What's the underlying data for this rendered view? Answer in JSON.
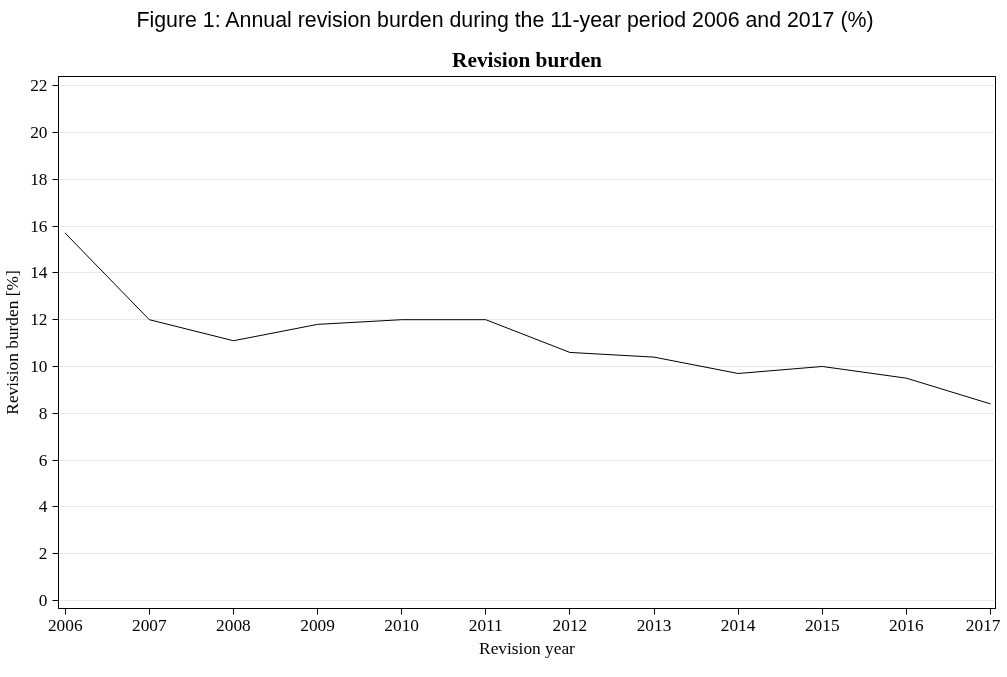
{
  "chart_data": {
    "type": "line",
    "title": "Revision burden",
    "xlabel": "Revision year",
    "ylabel": "Revision burden [%]",
    "annotations": [
      "Figure 1: Annual revision burden during the 11-year period 2006 and 2017 (%)"
    ],
    "x": [
      2006,
      2007,
      2008,
      2009,
      2010,
      2011,
      2012,
      2013,
      2014,
      2015,
      2016,
      2017
    ],
    "series": [
      {
        "color": "#000000",
        "values": [
          15.7,
          12.0,
          11.1,
          11.8,
          12.0,
          12.0,
          10.6,
          10.4,
          9.7,
          10.0,
          9.5,
          8.4
        ]
      }
    ],
    "xlim": [
      2005.92,
      2017.06
    ],
    "xticks": [
      2006,
      2007,
      2008,
      2009,
      2010,
      2011,
      2012,
      2013,
      2014,
      2015,
      2016,
      2017
    ],
    "ylim": [
      -0.35,
      22.4
    ],
    "yticks": [
      0,
      2,
      4,
      6,
      8,
      10,
      12,
      14,
      16,
      18,
      20,
      22
    ],
    "grid": "y",
    "line_style": "solid"
  }
}
